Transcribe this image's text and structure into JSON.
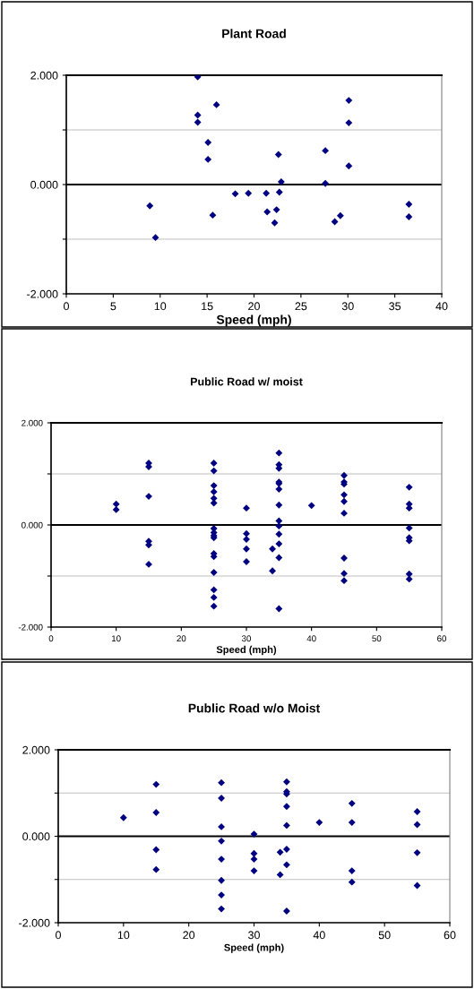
{
  "chart_data": [
    {
      "type": "scatter",
      "title": "Plant Road",
      "xlabel": "Speed (mph)",
      "xlim": [
        0,
        40
      ],
      "xticks": [
        0,
        5,
        10,
        15,
        20,
        25,
        30,
        35,
        40
      ],
      "ylim": [
        -2,
        2
      ],
      "yticks": [
        {
          "value": -2,
          "label": "-2.000"
        },
        {
          "value": -1,
          "label": null
        },
        {
          "value": 0,
          "label": "0.000"
        },
        {
          "value": 1,
          "label": null
        },
        {
          "value": 2,
          "label": "2.000"
        }
      ],
      "grid": "y",
      "marker": "diamond",
      "ref_lines": [
        {
          "axis": "y",
          "value": 0,
          "color": "#000000"
        }
      ],
      "series": [
        {
          "color": "#000080",
          "x": [
            8.9,
            9.5,
            14.0,
            14.0,
            14.0,
            16.0,
            15.1,
            15.1,
            15.6,
            18.0,
            19.4,
            21.3,
            21.4,
            22.2,
            22.4,
            22.6,
            22.7,
            22.9,
            27.6,
            27.6,
            28.6,
            29.2,
            30.1,
            30.1,
            30.1,
            36.5,
            36.5
          ],
          "values": [
            -0.39,
            -0.97,
            1.97,
            1.27,
            1.14,
            1.46,
            0.77,
            0.46,
            -0.56,
            -0.17,
            -0.16,
            -0.16,
            -0.5,
            -0.7,
            -0.46,
            0.55,
            -0.14,
            0.05,
            0.62,
            0.02,
            -0.68,
            -0.57,
            1.54,
            1.13,
            0.34,
            -0.36,
            -0.59
          ]
        }
      ]
    },
    {
      "type": "scatter",
      "title": "Public Road w/ moist",
      "xlabel": "Speed (mph)",
      "xlim": [
        0,
        60
      ],
      "xticks": [
        0,
        10,
        20,
        30,
        40,
        50,
        60
      ],
      "ylim": [
        -2,
        2
      ],
      "yticks": [
        {
          "value": -2,
          "label": "-2.000"
        },
        {
          "value": -1,
          "label": null
        },
        {
          "value": 0,
          "label": "0.000"
        },
        {
          "value": 1,
          "label": null
        },
        {
          "value": 2,
          "label": "2.000"
        }
      ],
      "grid": "y",
      "marker": "diamond",
      "ref_lines": [
        {
          "axis": "y",
          "value": 0,
          "color": "#000000"
        }
      ],
      "series": [
        {
          "color": "#000080",
          "x": [
            10,
            10,
            15,
            15,
            15,
            15,
            15,
            15,
            25,
            25,
            25,
            25,
            25,
            25,
            25,
            25,
            25,
            25,
            25,
            25,
            25,
            25,
            25,
            25,
            30,
            30,
            30,
            30,
            30,
            34,
            34,
            35,
            35,
            35,
            35,
            35,
            35,
            35,
            35,
            35,
            35,
            35,
            35,
            35,
            40,
            45,
            45,
            45,
            45,
            45,
            45,
            45,
            45,
            45,
            55,
            55,
            55,
            55,
            55,
            55,
            55,
            55
          ],
          "values": [
            0.41,
            0.3,
            1.21,
            1.14,
            0.56,
            -0.32,
            -0.39,
            -0.77,
            1.21,
            1.06,
            0.77,
            0.65,
            0.52,
            0.43,
            -0.07,
            -0.15,
            -0.21,
            -0.25,
            -0.56,
            -0.62,
            -0.93,
            -1.27,
            -1.42,
            -1.59,
            0.33,
            -0.17,
            -0.28,
            -0.47,
            -0.72,
            -0.47,
            -0.9,
            1.41,
            1.18,
            1.11,
            0.84,
            0.81,
            0.7,
            0.39,
            0.08,
            -0.02,
            -0.18,
            -0.37,
            -0.64,
            -1.64,
            0.38,
            0.97,
            0.84,
            0.8,
            0.59,
            0.46,
            0.23,
            -0.65,
            -0.95,
            -1.09,
            0.74,
            0.41,
            0.33,
            -0.06,
            -0.25,
            -0.31,
            -0.96,
            -1.06
          ]
        }
      ]
    },
    {
      "type": "scatter",
      "title": "Public Road w/o Moist",
      "xlabel": "Speed (mph)",
      "xlim": [
        0,
        60
      ],
      "xticks": [
        0,
        10,
        20,
        30,
        40,
        50,
        60
      ],
      "ylim": [
        -2,
        2
      ],
      "yticks": [
        {
          "value": -2,
          "label": "-2.000"
        },
        {
          "value": -1,
          "label": null
        },
        {
          "value": 0,
          "label": "0.000"
        },
        {
          "value": 1,
          "label": null
        },
        {
          "value": 2,
          "label": "2.000"
        }
      ],
      "grid": "y",
      "marker": "diamond",
      "ref_lines": [
        {
          "axis": "y",
          "value": 0,
          "color": "#000000"
        }
      ],
      "series": [
        {
          "color": "#000080",
          "x": [
            10,
            15,
            15,
            15,
            15,
            25,
            25,
            25,
            25,
            25,
            25,
            25,
            25,
            30,
            30,
            30,
            30,
            34,
            34,
            35,
            35,
            35,
            35,
            35,
            35,
            35,
            35,
            40,
            45,
            45,
            45,
            45,
            55,
            55,
            55,
            55
          ],
          "values": [
            0.43,
            1.2,
            0.55,
            -0.31,
            -0.77,
            1.24,
            0.88,
            0.22,
            -0.11,
            -0.53,
            -1.02,
            -1.36,
            -1.68,
            0.05,
            -0.4,
            -0.53,
            -0.8,
            -0.37,
            -0.89,
            1.26,
            1.03,
            0.98,
            0.69,
            0.25,
            -0.3,
            -0.66,
            -1.73,
            0.32,
            0.76,
            0.32,
            -0.8,
            -1.06,
            0.57,
            0.27,
            -0.38,
            -1.14
          ]
        }
      ]
    }
  ]
}
